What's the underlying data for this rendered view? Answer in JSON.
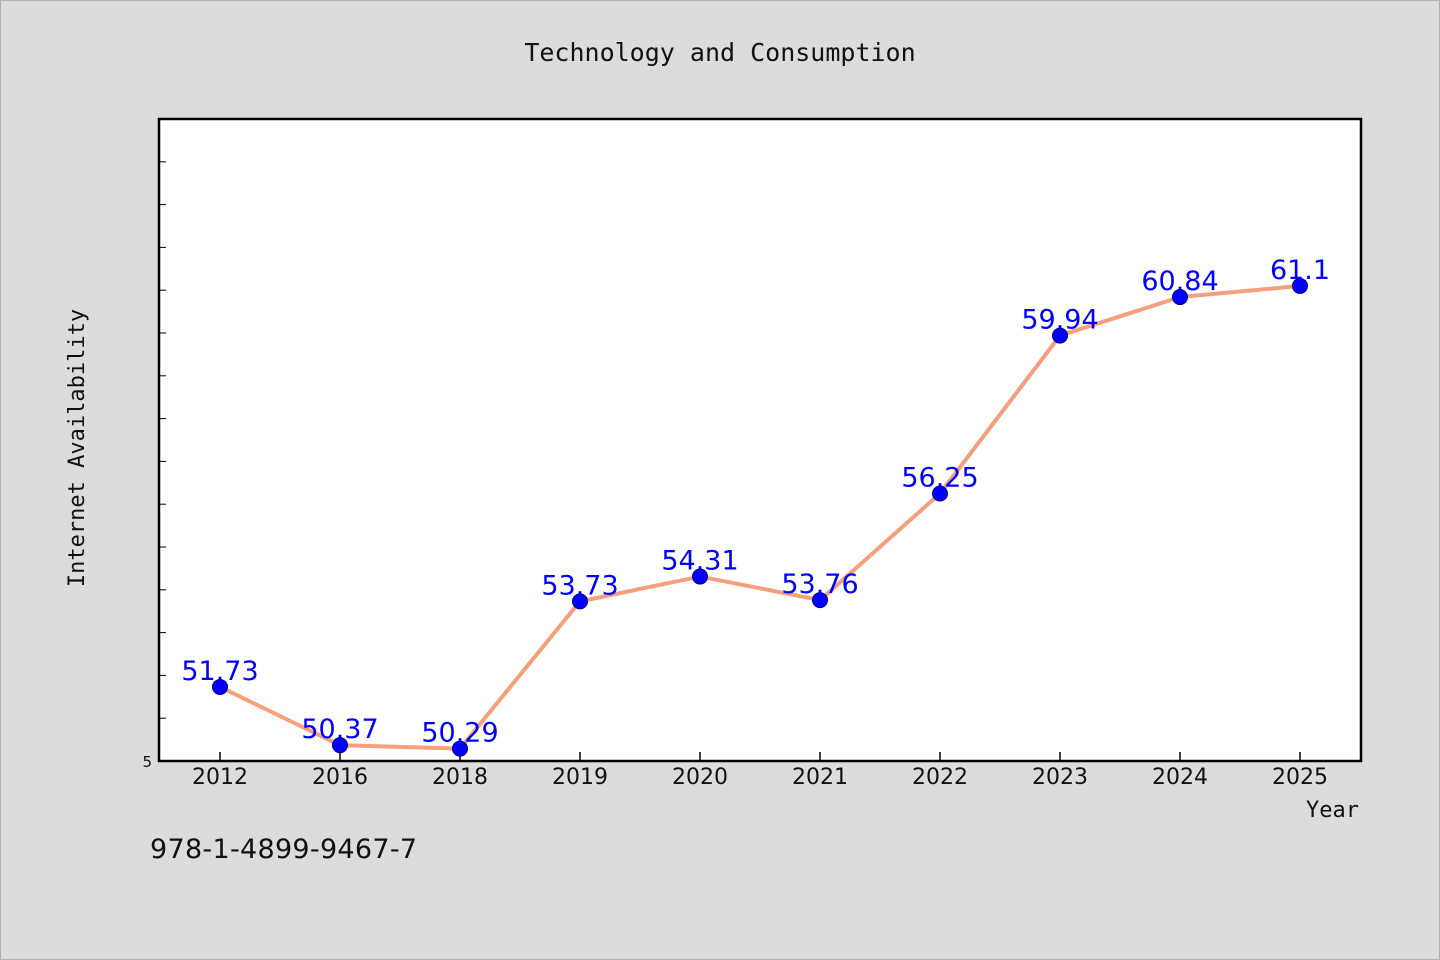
{
  "chart_data": {
    "type": "line",
    "title": "Technology and Consumption",
    "xlabel": "Year",
    "ylabel": "Internet Availability",
    "categories": [
      "2012",
      "2016",
      "2018",
      "2019",
      "2020",
      "2021",
      "2022",
      "2023",
      "2024",
      "2025"
    ],
    "series": [
      {
        "values": [
          51.73,
          50.37,
          50.29,
          53.73,
          54.31,
          53.76,
          56.25,
          59.94,
          60.84,
          61.1
        ],
        "labels": [
          "51.73",
          "50.37",
          "50.29",
          "53.73",
          "54.31",
          "53.76",
          "56.25",
          "59.94",
          "60.84",
          "61.1"
        ]
      }
    ],
    "ylim": [
      50,
      65
    ],
    "y_tick_label": "5",
    "y_minor_tick_count": 15,
    "grid": false,
    "colors": {
      "line": "#f4a07c",
      "marker": "#0000ff",
      "value_label": "#0000ff",
      "plot_background": "#ffffff",
      "page_background": "#dcdcdc"
    }
  },
  "footer": {
    "code": "978-1-4899-9467-7"
  }
}
